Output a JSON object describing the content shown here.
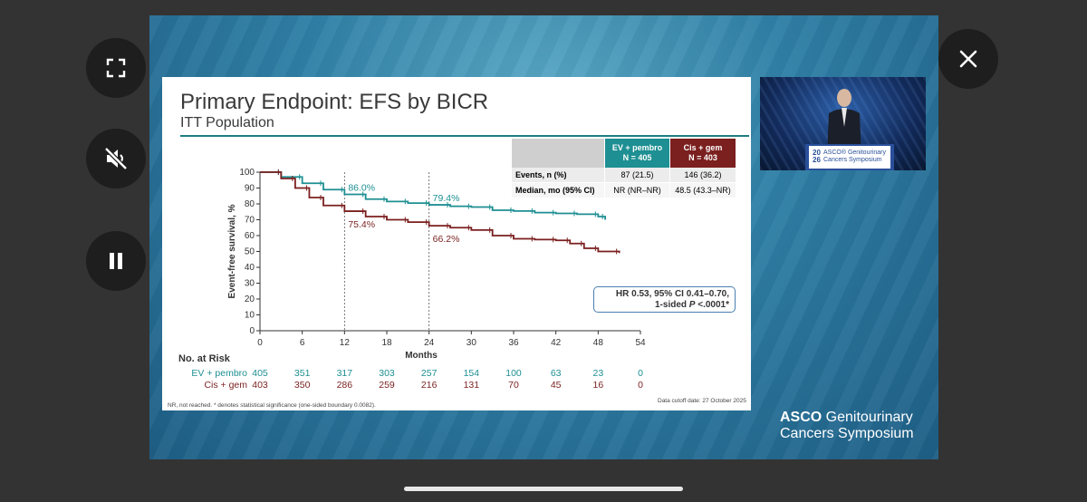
{
  "controls": {
    "fullscreen": "fullscreen-icon",
    "mute": "speaker-muted-icon",
    "pause": "pause-icon",
    "close": "close-icon"
  },
  "slide": {
    "title": "Primary Endpoint: EFS by BICR",
    "subtitle": "ITT Population",
    "table": {
      "headers": [
        "EV + pembro\nN = 405",
        "Cis + gem\nN = 403"
      ],
      "rows": [
        {
          "label": "Events, n (%)",
          "values": [
            "87 (21.5)",
            "146 (36.2)"
          ]
        },
        {
          "label": "Median, mo (95% CI)",
          "values": [
            "NR (NR–NR)",
            "48.5 (43.3–NR)"
          ]
        }
      ]
    },
    "hr": {
      "line1": "HR 0.53, 95% CI 0.41–0.70,",
      "line2_pre": "1-sided ",
      "line2_p": "P",
      "line2_post": " <.0001*"
    },
    "risk": {
      "title": "No. at Risk",
      "rows": [
        {
          "label": "EV + pembro",
          "values": [
            "405",
            "351",
            "317",
            "303",
            "257",
            "154",
            "100",
            "63",
            "23",
            "0"
          ]
        },
        {
          "label": "Cis + gem",
          "values": [
            "403",
            "350",
            "286",
            "259",
            "216",
            "131",
            "70",
            "45",
            "16",
            "0"
          ]
        }
      ]
    },
    "footnote": "NR, not reached. * denotes statistical significance (one-sided boundary 0.0082).",
    "cutoff": "Data cutoff date: 27 October 2025"
  },
  "chart_data": {
    "type": "line",
    "title": "Primary Endpoint: EFS by BICR",
    "xlabel": "Months",
    "ylabel": "Event-free survival, %",
    "xlim": [
      0,
      54
    ],
    "ylim": [
      0,
      100
    ],
    "xticks": [
      0,
      6,
      12,
      18,
      24,
      30,
      36,
      42,
      48,
      54
    ],
    "yticks": [
      0,
      10,
      20,
      30,
      40,
      50,
      60,
      70,
      80,
      90,
      100
    ],
    "reference_lines": [
      12,
      24
    ],
    "series": [
      {
        "name": "EV + pembro",
        "color": "#1e8f92",
        "x": [
          0,
          3,
          6,
          9,
          12,
          15,
          18,
          21,
          24,
          27,
          30,
          33,
          36,
          39,
          42,
          45,
          48,
          49
        ],
        "y": [
          100,
          97,
          93,
          89,
          86,
          83,
          81.5,
          80.5,
          79.4,
          78.5,
          78,
          76,
          75.5,
          74.5,
          74,
          73.5,
          72,
          70
        ]
      },
      {
        "name": "Cis + gem",
        "color": "#7b1f1f",
        "x": [
          0,
          3,
          5,
          7,
          9,
          12,
          15,
          18,
          21,
          24,
          27,
          30,
          33,
          36,
          39,
          42,
          44,
          46,
          48,
          51
        ],
        "y": [
          100,
          96,
          90,
          84,
          79,
          75.4,
          72,
          70,
          68.5,
          66.2,
          65,
          63.5,
          60,
          58,
          57.5,
          57,
          55,
          52,
          50,
          49
        ]
      }
    ],
    "annotations": [
      {
        "text": "86.0%",
        "x": 12,
        "y": 86.0,
        "series": "EV + pembro"
      },
      {
        "text": "79.4%",
        "x": 24,
        "y": 79.4,
        "series": "EV + pembro"
      },
      {
        "text": "75.4%",
        "x": 12,
        "y": 75.4,
        "series": "Cis + gem"
      },
      {
        "text": "66.2%",
        "x": 24,
        "y": 66.2,
        "series": "Cis + gem"
      }
    ]
  },
  "video": {
    "banner_line1": "ASCO® Genitourinary",
    "banner_line2": "Cancers Symposium",
    "year_top": "20",
    "year_bottom": "26"
  },
  "logo": {
    "bold": "ASCO",
    "line1_rest": " Genitourinary",
    "line2": "Cancers Symposium"
  },
  "colors": {
    "teal": "#1e8f92",
    "maroon": "#7b1f1f",
    "background": "#333333"
  }
}
